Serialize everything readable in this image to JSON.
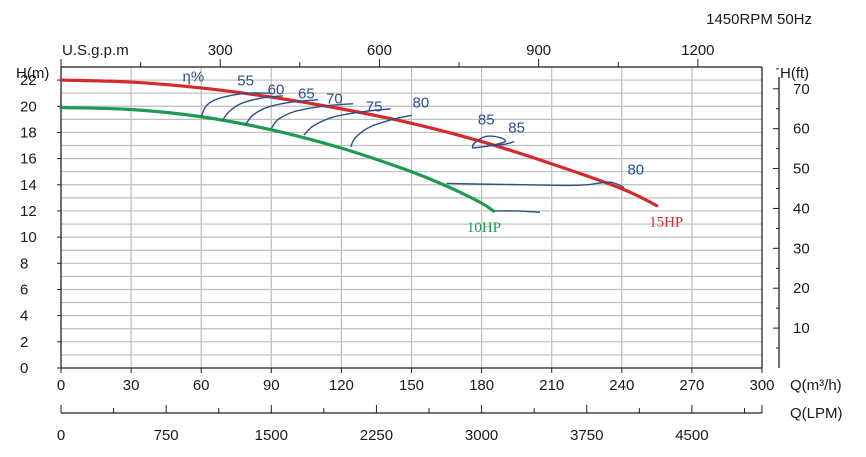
{
  "header": {
    "speed_label": "1450RPM  50Hz"
  },
  "axes": {
    "h_m_label": "H(m)",
    "h_ft_label": "H(ft)",
    "usgpm_label": "U.S.g.p.m",
    "q_m3h_label": "Q(m³/h)",
    "q_lpm_label": "Q(LPM)"
  },
  "chart_data": {
    "type": "line",
    "x_axis": {
      "label": "Q(m³/h)",
      "range": [
        0,
        300
      ],
      "ticks": [
        0,
        30,
        60,
        90,
        120,
        150,
        180,
        210,
        240,
        270,
        300
      ]
    },
    "y_axis_left": {
      "label": "H(m)",
      "range": [
        0,
        23
      ],
      "ticks": [
        0,
        2,
        4,
        6,
        8,
        10,
        12,
        14,
        16,
        18,
        20,
        22
      ]
    },
    "y_axis_right": {
      "label": "H(ft)",
      "ticks": [
        10,
        20,
        30,
        40,
        50,
        60,
        70
      ]
    },
    "top_axis": {
      "label": "U.S.g.p.m",
      "ticks": [
        300,
        600,
        900,
        1200
      ]
    },
    "bottom_axis_lpm": {
      "label": "Q(LPM)",
      "ticks": [
        0,
        750,
        1500,
        2250,
        3000,
        3750,
        4500
      ]
    },
    "grid": true,
    "series": [
      {
        "name": "15HP",
        "color": "#d42a2a",
        "x": [
          0,
          30,
          60,
          90,
          120,
          150,
          180,
          210,
          240,
          255
        ],
        "y": [
          22.0,
          21.85,
          21.4,
          20.7,
          19.8,
          18.7,
          17.3,
          15.6,
          13.7,
          12.4
        ]
      },
      {
        "name": "10HP",
        "color": "#1f9a52",
        "x": [
          0,
          30,
          60,
          90,
          120,
          150,
          165,
          180,
          185
        ],
        "y": [
          19.9,
          19.75,
          19.2,
          18.2,
          16.8,
          15.0,
          13.9,
          12.6,
          12.0
        ]
      }
    ],
    "efficiency_label": "η%",
    "efficiency_curves": [
      {
        "label": "55",
        "x": [
          60,
          62,
          66,
          72,
          80,
          90
        ],
        "y": [
          19.2,
          20.0,
          20.5,
          20.8,
          21.0,
          21.0
        ]
      },
      {
        "label": "60",
        "x": [
          69,
          72,
          77,
          85,
          95
        ],
        "y": [
          18.9,
          19.6,
          20.2,
          20.6,
          20.8
        ]
      },
      {
        "label": "65",
        "x": [
          79,
          82,
          88,
          98,
          110
        ],
        "y": [
          18.6,
          19.3,
          19.9,
          20.3,
          20.5
        ]
      },
      {
        "label": "70",
        "x": [
          90,
          93,
          100,
          112,
          125
        ],
        "y": [
          18.3,
          19.0,
          19.6,
          20.0,
          20.2
        ]
      },
      {
        "label": "75",
        "x": [
          104,
          108,
          117,
          130,
          141
        ],
        "y": [
          17.8,
          18.5,
          19.2,
          19.6,
          19.8
        ]
      },
      {
        "label": "80",
        "x": [
          124,
          126,
          132,
          142,
          150
        ],
        "y": [
          16.9,
          17.6,
          18.4,
          19.0,
          19.3
        ]
      },
      {
        "label": "85",
        "x": [
          176,
          177,
          182,
          188,
          190,
          184,
          176
        ],
        "y": [
          16.8,
          17.2,
          17.7,
          17.6,
          17.3,
          17.0,
          16.8
        ]
      },
      {
        "label": "85",
        "x": [
          184,
          190,
          194
        ],
        "y": [
          17.0,
          17.1,
          17.3
        ]
      },
      {
        "label": "80",
        "x": [
          165,
          180,
          200,
          215,
          225,
          235,
          241
        ],
        "y": [
          14.1,
          14.05,
          14.0,
          13.95,
          14.0,
          14.2,
          13.8
        ]
      },
      {
        "label": "",
        "x": [
          185,
          195,
          205
        ],
        "y": [
          12.0,
          12.0,
          11.9
        ]
      }
    ],
    "efficiency_label_positions": [
      {
        "text": "55",
        "x": 79,
        "y": 21.6
      },
      {
        "text": "60",
        "x": 92,
        "y": 20.9
      },
      {
        "text": "65",
        "x": 105,
        "y": 20.6
      },
      {
        "text": "70",
        "x": 117,
        "y": 20.2
      },
      {
        "text": "75",
        "x": 134,
        "y": 19.6
      },
      {
        "text": "80",
        "x": 154,
        "y": 19.9
      },
      {
        "text": "85",
        "x": 182,
        "y": 18.6
      },
      {
        "text": "85",
        "x": 195,
        "y": 18.0
      },
      {
        "text": "80",
        "x": 246,
        "y": 14.8
      }
    ],
    "series_label_positions": [
      {
        "text": "15HP",
        "x": 259,
        "y": 10.8,
        "color": "#d42a2a"
      },
      {
        "text": "10HP",
        "x": 181,
        "y": 10.4,
        "color": "#1f9a52"
      }
    ]
  }
}
